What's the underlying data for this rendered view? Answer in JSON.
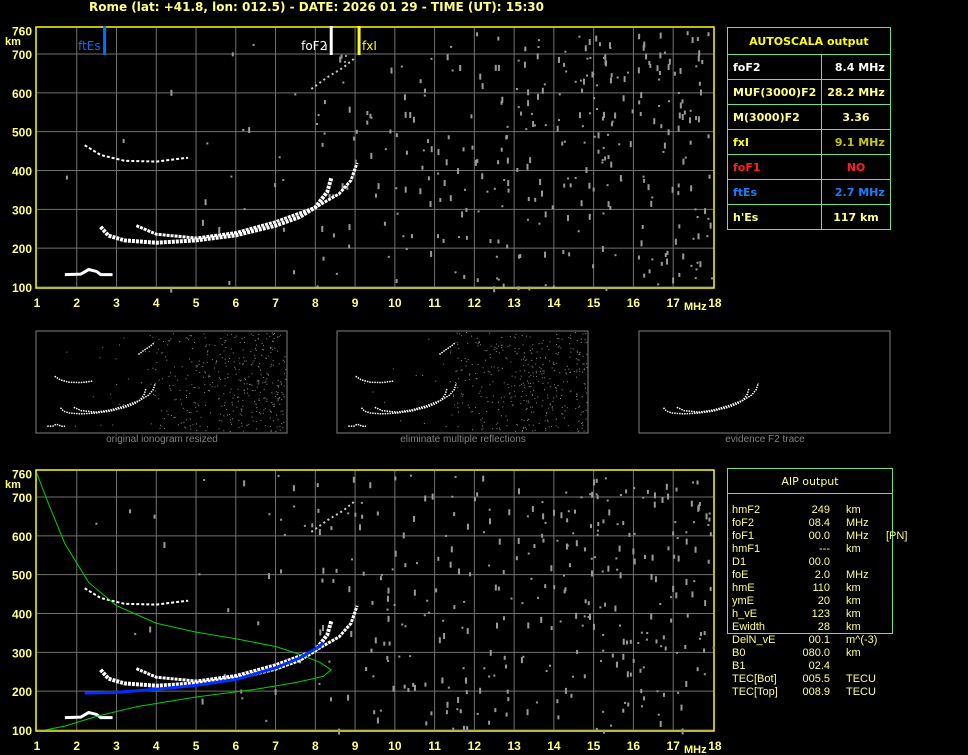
{
  "header": {
    "title": "Rome (lat: +41.8, lon: 012.5) - DATE: 2026 01 29 - TIME (UT): 15:30"
  },
  "ionogram": {
    "freq_ticks": [
      "1",
      "2",
      "3",
      "4",
      "5",
      "6",
      "7",
      "8",
      "9",
      "10",
      "11",
      "12",
      "13",
      "14",
      "15",
      "16",
      "17",
      "18"
    ],
    "freq_unit": "MHz",
    "height_ticks": [
      "100",
      "200",
      "300",
      "400",
      "500",
      "600",
      "700",
      "760"
    ],
    "height_unit": "km",
    "xlim": [
      1,
      18
    ],
    "ylim": [
      100,
      760
    ],
    "markers": [
      {
        "label": "ftEs",
        "freq": 2.7,
        "color": "#0070ff"
      },
      {
        "label": "foF2",
        "freq": 8.4,
        "color": "#ffffff"
      },
      {
        "label": "fxI",
        "freq": 9.1,
        "color": "#ffff00"
      }
    ],
    "traces": {
      "f2_ordinary": [
        [
          2.6,
          255
        ],
        [
          2.8,
          232
        ],
        [
          3.2,
          220
        ],
        [
          4,
          214
        ],
        [
          5,
          220
        ],
        [
          6,
          233
        ],
        [
          7,
          258
        ],
        [
          7.6,
          280
        ],
        [
          8,
          305
        ],
        [
          8.3,
          345
        ],
        [
          8.4,
          380
        ]
      ],
      "f2_extraordinary": [
        [
          3.5,
          258
        ],
        [
          4,
          236
        ],
        [
          5,
          226
        ],
        [
          6,
          240
        ],
        [
          7,
          268
        ],
        [
          8,
          305
        ],
        [
          8.6,
          340
        ],
        [
          8.9,
          375
        ],
        [
          9.05,
          420
        ]
      ],
      "multiple": [
        [
          2.2,
          465
        ],
        [
          2.6,
          440
        ],
        [
          3.2,
          425
        ],
        [
          4,
          423
        ],
        [
          4.8,
          433
        ]
      ],
      "es": [
        [
          1.7,
          132
        ],
        [
          2.1,
          133
        ],
        [
          2.3,
          145
        ],
        [
          2.5,
          140
        ],
        [
          2.6,
          132
        ],
        [
          2.9,
          132
        ]
      ],
      "faint_hop": [
        [
          7.9,
          610
        ],
        [
          8.3,
          640
        ],
        [
          8.7,
          665
        ],
        [
          9.0,
          690
        ]
      ]
    },
    "aip_profile": [
      [
        1,
        760
      ],
      [
        1.3,
        680
      ],
      [
        1.7,
        580
      ],
      [
        2.3,
        480
      ],
      [
        3,
        420
      ],
      [
        4,
        375
      ],
      [
        5,
        352
      ],
      [
        6,
        335
      ],
      [
        7,
        315
      ],
      [
        7.6,
        295
      ],
      [
        8.1,
        275
      ],
      [
        8.4,
        255
      ],
      [
        8.2,
        238
      ],
      [
        7.5,
        222
      ],
      [
        6.5,
        205
      ],
      [
        5,
        185
      ],
      [
        3.5,
        160
      ],
      [
        2.5,
        135
      ],
      [
        1.7,
        110
      ],
      [
        1.2,
        100
      ]
    ],
    "aip_trace": [
      [
        2.2,
        195
      ],
      [
        3,
        197
      ],
      [
        4,
        205
      ],
      [
        5,
        215
      ],
      [
        6,
        230
      ],
      [
        7,
        260
      ],
      [
        7.6,
        285
      ],
      [
        8.1,
        315
      ],
      [
        8.2,
        325
      ]
    ]
  },
  "autoscala": {
    "title": "AUTOSCALA output",
    "rows": [
      {
        "label": "foF2",
        "value": "8.4 MHz",
        "color": "#ffffff"
      },
      {
        "label": "MUF(3000)F2",
        "value": "28.2 MHz",
        "color": "#ffff80"
      },
      {
        "label": "M(3000)F2",
        "value": "3.36",
        "color": "#ffff80"
      },
      {
        "label": "fxI",
        "value": "9.1 MHz",
        "color": "#ffff00",
        "value_color": "#c8c800"
      },
      {
        "label": "foF1",
        "value": "NO",
        "color": "#ff2020"
      },
      {
        "label": "ftEs",
        "value": "2.7 MHz",
        "color": "#1080ff"
      },
      {
        "label": "h'Es",
        "value": "117     km",
        "color": "#ffff80"
      }
    ]
  },
  "thumbnails": [
    {
      "caption": "original ionogram resized"
    },
    {
      "caption": "eliminate multiple reflections"
    },
    {
      "caption": "evidence F2 trace"
    }
  ],
  "aip": {
    "title": "AIP output",
    "rows": [
      {
        "name": "hmF2",
        "value": "249",
        "unit": "km",
        "extra": ""
      },
      {
        "name": "foF2",
        "value": "08.4",
        "unit": "MHz",
        "extra": ""
      },
      {
        "name": "foF1",
        "value": "00.0",
        "unit": "MHz",
        "extra": "[PN]"
      },
      {
        "name": "hmF1",
        "value": "---",
        "unit": "km",
        "extra": ""
      },
      {
        "name": "D1",
        "value": "00.0",
        "unit": "",
        "extra": ""
      },
      {
        "name": "foE",
        "value": "2.0",
        "unit": "MHz",
        "extra": ""
      },
      {
        "name": "hmE",
        "value": "110",
        "unit": "km",
        "extra": ""
      },
      {
        "name": "ymE",
        "value": "20",
        "unit": "km",
        "extra": ""
      },
      {
        "name": "h_vE",
        "value": "123",
        "unit": "km",
        "extra": ""
      },
      {
        "name": "Ewidth",
        "value": "28",
        "unit": "km",
        "extra": ""
      },
      {
        "name": "DelN_vE",
        "value": "00.1",
        "unit": "m^(-3)",
        "extra": ""
      },
      {
        "name": "B0",
        "value": "080.0",
        "unit": "km",
        "extra": ""
      },
      {
        "name": "B1",
        "value": "02.4",
        "unit": "",
        "extra": ""
      },
      {
        "name": "TEC[Bot]",
        "value": "005.5",
        "unit": "TECU",
        "extra": ""
      },
      {
        "name": "TEC[Top]",
        "value": "008.9",
        "unit": "TECU",
        "extra": ""
      }
    ]
  },
  "colors": {
    "axis": "#ffff00",
    "grid": "#707070",
    "panel_border": "#6fe08a",
    "trace": "#ffffff",
    "aip_trace": "#0030ff",
    "aip_profile": "#00d000"
  }
}
